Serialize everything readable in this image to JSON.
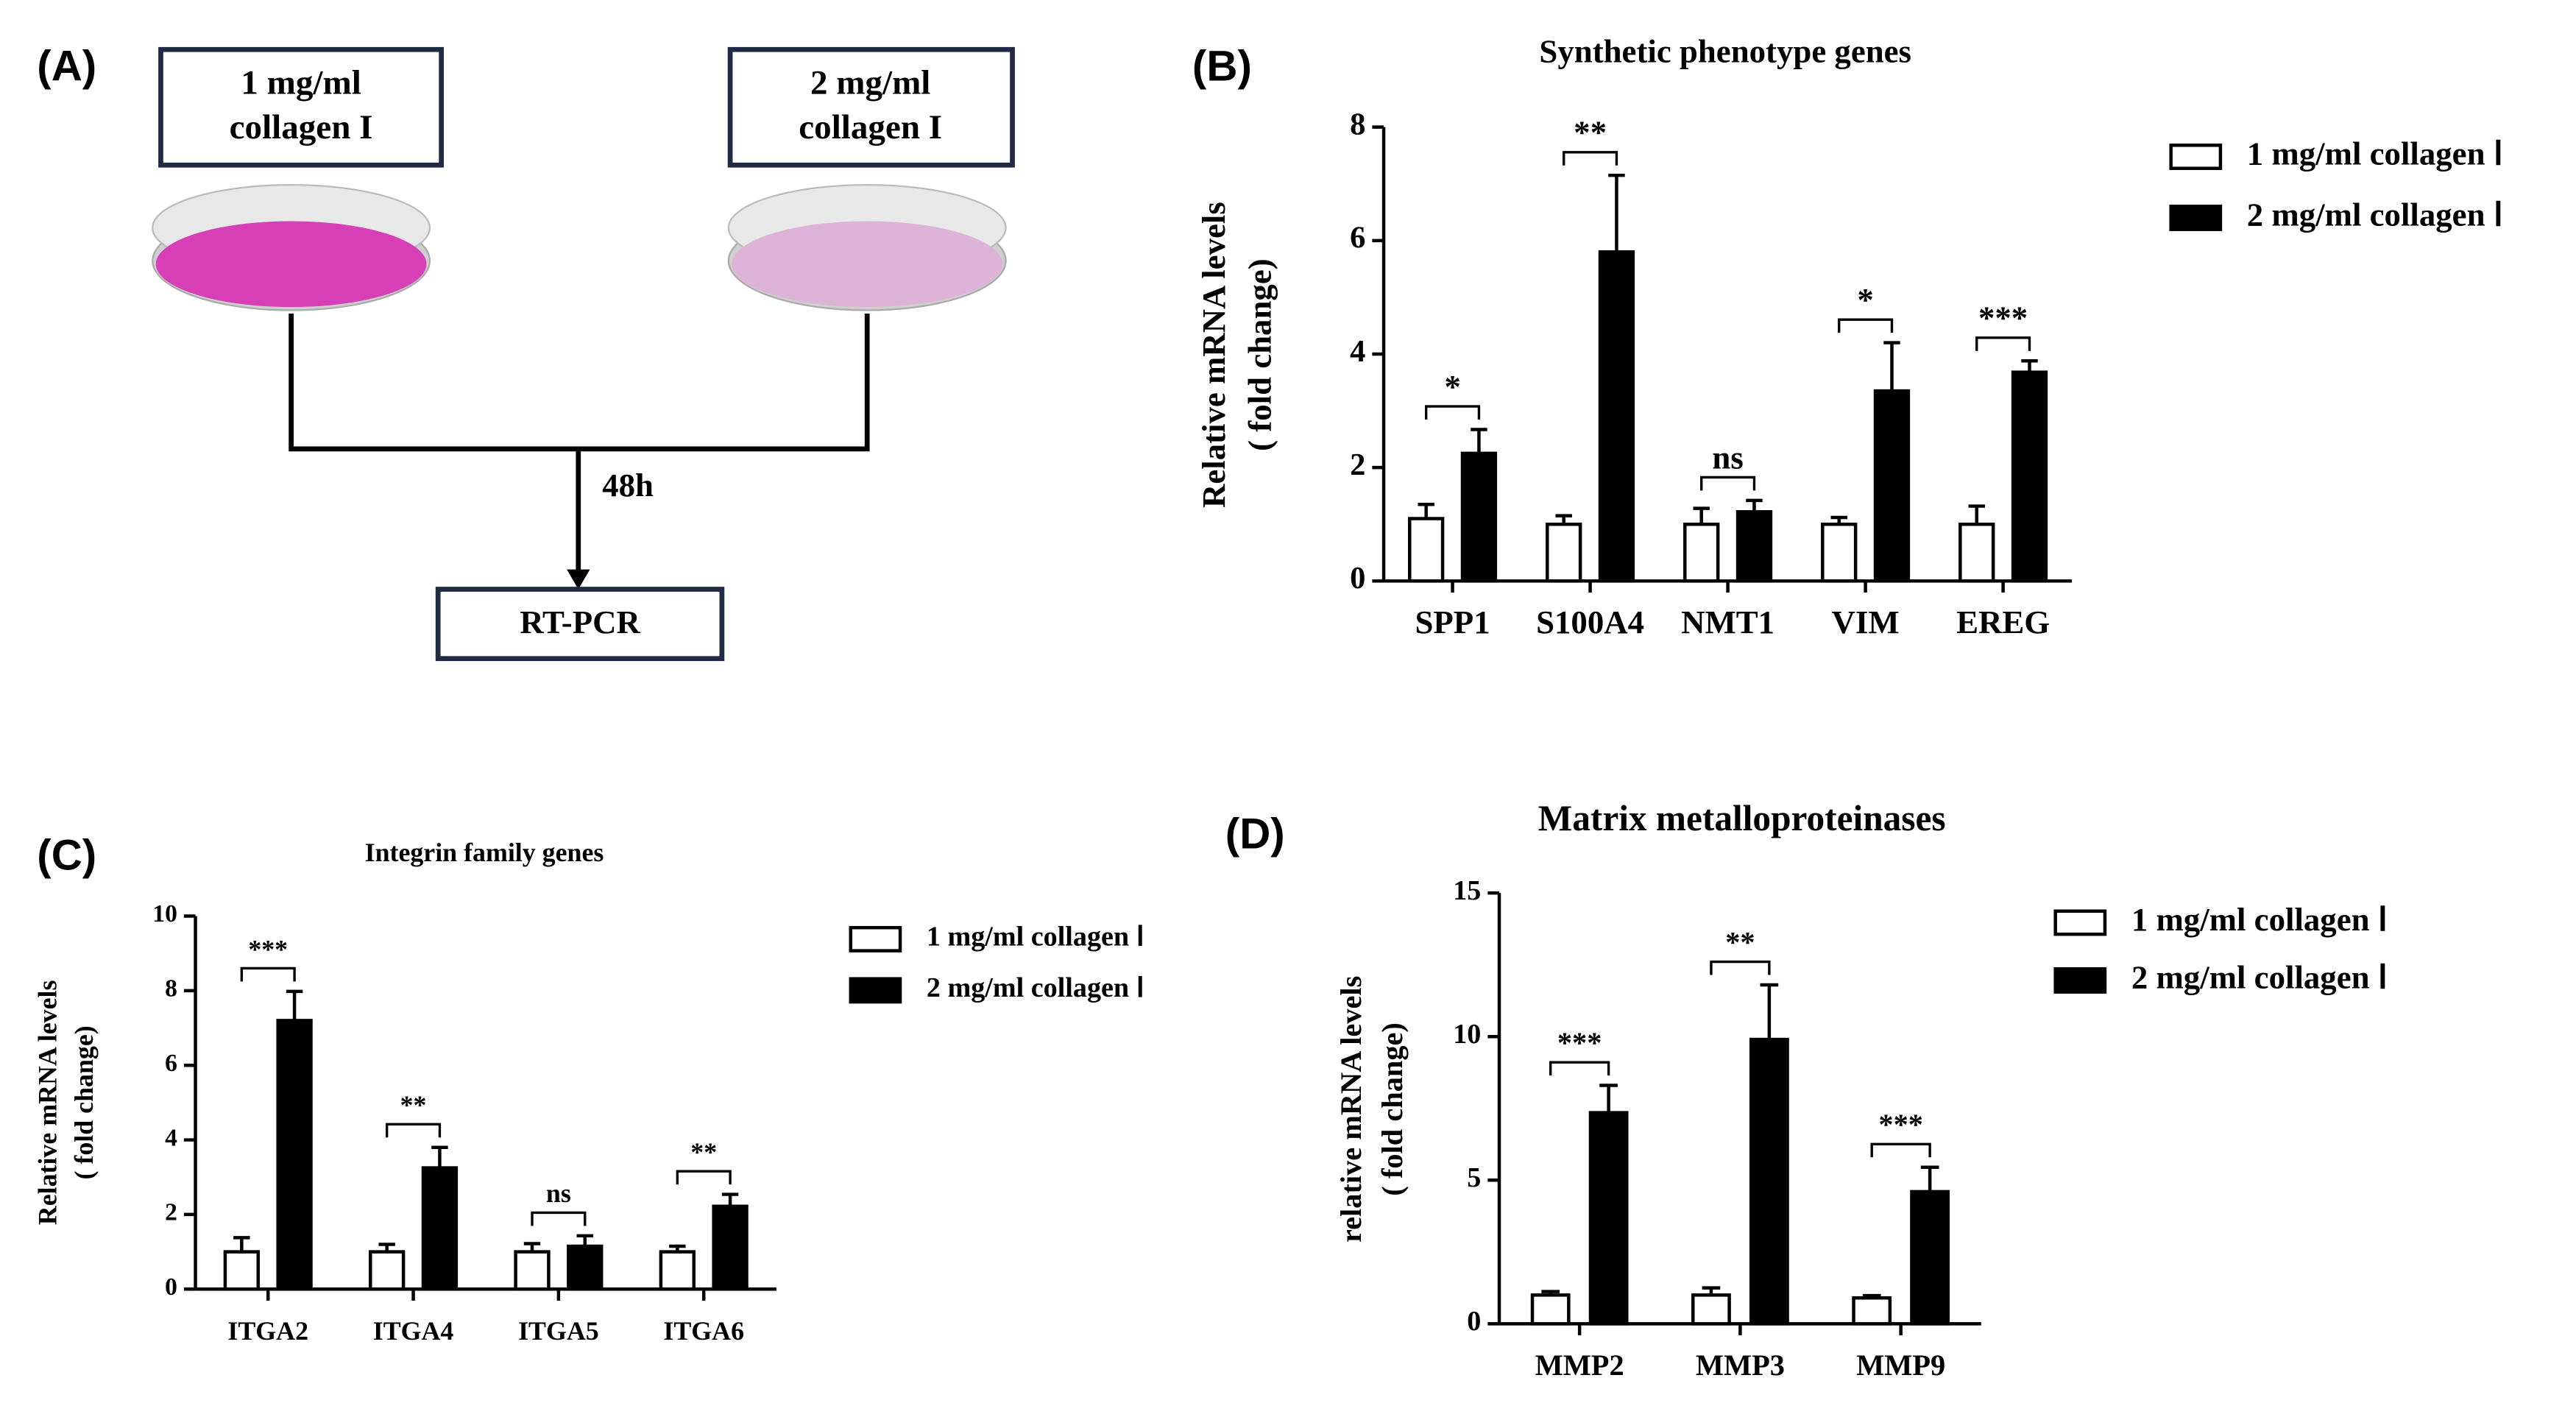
{
  "diagram": {
    "panel_label": "(A)",
    "boxes": [
      [
        "1 mg/ml",
        "collagen I"
      ],
      [
        "2 mg/ml",
        "collagen I"
      ]
    ],
    "time": "48h",
    "result": "RT-PCR"
  },
  "chart_data": [
    {
      "type": "bar",
      "panel_label": "(B)",
      "title": "Synthetic phenotype genes",
      "y_label": [
        "Relative mRNA levels",
        "( fold change)"
      ],
      "categories": [
        "SPP1",
        "S100A4",
        "NMT1",
        "VIM",
        "EREG"
      ],
      "series": [
        {
          "name": "1 mg/ml collagen Ⅰ",
          "color": "#ffffff",
          "values": [
            1.1,
            1.0,
            1.0,
            1.0,
            1.0
          ],
          "errors": [
            0.25,
            0.15,
            0.28,
            0.12,
            0.32
          ]
        },
        {
          "name": "2 mg/ml collagen Ⅰ",
          "color": "#000000",
          "values": [
            2.25,
            5.8,
            1.22,
            3.35,
            3.68
          ],
          "errors": [
            0.42,
            1.35,
            0.2,
            0.85,
            0.2
          ]
        }
      ],
      "significance": [
        "*",
        "**",
        "ns",
        "*",
        "***"
      ],
      "ylim": [
        0,
        8
      ],
      "yticks": [
        0,
        2,
        4,
        6,
        8
      ]
    },
    {
      "type": "bar",
      "panel_label": "(C)",
      "title": "Integrin family genes",
      "y_label": [
        "Relative mRNA levels",
        "( fold change)"
      ],
      "categories": [
        "ITGA2",
        "ITGA4",
        "ITGA5",
        "ITGA6"
      ],
      "series": [
        {
          "name": "1 mg/ml collagen Ⅰ",
          "color": "#ffffff",
          "values": [
            1.0,
            1.0,
            1.0,
            1.0
          ],
          "errors": [
            0.38,
            0.2,
            0.22,
            0.15
          ]
        },
        {
          "name": "2 mg/ml collagen Ⅰ",
          "color": "#000000",
          "values": [
            7.2,
            3.25,
            1.15,
            2.22
          ],
          "errors": [
            0.78,
            0.55,
            0.28,
            0.32
          ]
        }
      ],
      "significance": [
        "***",
        "**",
        "ns",
        "**"
      ],
      "ylim": [
        0,
        10
      ],
      "yticks": [
        0,
        2,
        4,
        6,
        8,
        10
      ]
    },
    {
      "type": "bar",
      "panel_label": "(D)",
      "title": "Matrix metalloproteinases",
      "y_label": [
        "relative mRNA levels",
        "( fold change)"
      ],
      "categories": [
        "MMP2",
        "MMP3",
        "MMP9"
      ],
      "series": [
        {
          "name": "1 mg/ml collagen Ⅰ",
          "color": "#ffffff",
          "values": [
            1.0,
            1.0,
            0.9
          ],
          "errors": [
            0.12,
            0.25,
            0.08
          ]
        },
        {
          "name": "2 mg/ml collagen Ⅰ",
          "color": "#000000",
          "values": [
            7.35,
            9.9,
            4.6
          ],
          "errors": [
            0.95,
            1.9,
            0.85
          ]
        }
      ],
      "significance": [
        "***",
        "**",
        "***"
      ],
      "ylim": [
        0,
        15
      ],
      "yticks": [
        0,
        5,
        10,
        15
      ]
    }
  ]
}
